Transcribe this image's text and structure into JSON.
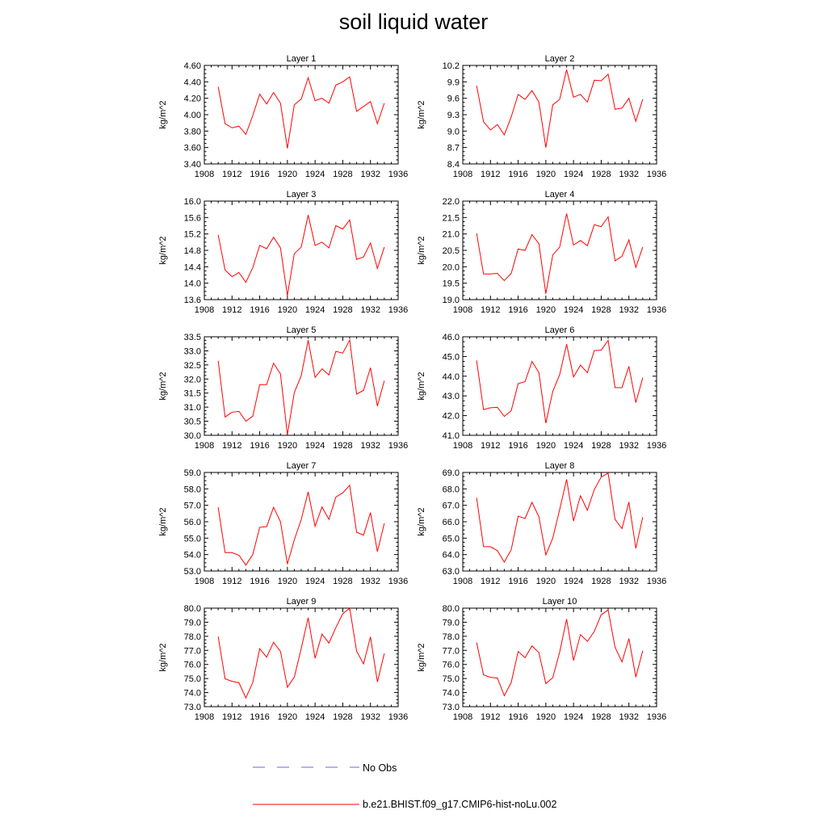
{
  "figure": {
    "title": "soil liquid water",
    "legend": [
      {
        "label": "No Obs",
        "color": "#6a6ad8",
        "style": "dashed"
      },
      {
        "label": "b.e21.BHIST.f09_g17.CMIP6-hist-noLu.002",
        "color": "#ff0000",
        "style": "solid"
      }
    ]
  },
  "chart_data": [
    {
      "type": "line",
      "title": "Layer 1",
      "xlabel": "",
      "ylabel": "kg/m^2",
      "xlim": [
        1908,
        1936
      ],
      "ylim": [
        3.4,
        4.6
      ],
      "xticks": [
        "1908",
        "1912",
        "1916",
        "1920",
        "1924",
        "1928",
        "1932",
        "1936"
      ],
      "yticks": [
        "3.40",
        "3.60",
        "3.80",
        "4.00",
        "4.20",
        "4.40",
        "4.60"
      ],
      "x": [
        1910,
        1911,
        1912,
        1913,
        1914,
        1915,
        1916,
        1917,
        1918,
        1919,
        1920,
        1921,
        1922,
        1923,
        1924,
        1925,
        1926,
        1927,
        1928,
        1929,
        1930,
        1931,
        1932,
        1933,
        1934
      ],
      "series": [
        {
          "name": "b.e21.BHIST.f09_g17.CMIP6-hist-noLu.002",
          "color": "#ff0000",
          "values": [
            4.34,
            3.89,
            3.84,
            3.86,
            3.76,
            3.99,
            4.25,
            4.13,
            4.27,
            4.14,
            3.59,
            4.12,
            4.19,
            4.45,
            4.17,
            4.2,
            4.14,
            4.36,
            4.4,
            4.46,
            4.04,
            4.1,
            4.16,
            3.89,
            4.14
          ]
        }
      ]
    },
    {
      "type": "line",
      "title": "Layer 2",
      "xlabel": "",
      "ylabel": "kg/m^2",
      "xlim": [
        1908,
        1936
      ],
      "ylim": [
        8.4,
        10.2
      ],
      "xticks": [
        "1908",
        "1912",
        "1916",
        "1920",
        "1924",
        "1928",
        "1932",
        "1936"
      ],
      "yticks": [
        "8.4",
        "8.7",
        "9.0",
        "9.3",
        "9.6",
        "9.9",
        "10.2"
      ],
      "x": [
        1910,
        1911,
        1912,
        1913,
        1914,
        1915,
        1916,
        1917,
        1918,
        1919,
        1920,
        1921,
        1922,
        1923,
        1924,
        1925,
        1926,
        1927,
        1928,
        1929,
        1930,
        1931,
        1932,
        1933,
        1934
      ],
      "series": [
        {
          "name": "b.e21.BHIST.f09_g17.CMIP6-hist-noLu.002",
          "color": "#ff0000",
          "values": [
            9.83,
            9.17,
            9.02,
            9.12,
            8.93,
            9.26,
            9.67,
            9.58,
            9.74,
            9.53,
            8.7,
            9.48,
            9.58,
            10.12,
            9.62,
            9.67,
            9.53,
            9.93,
            9.92,
            10.04,
            9.4,
            9.42,
            9.6,
            9.18,
            9.58
          ]
        }
      ]
    },
    {
      "type": "line",
      "title": "Layer 3",
      "xlabel": "",
      "ylabel": "kg/m^2",
      "xlim": [
        1908,
        1936
      ],
      "ylim": [
        13.6,
        16.0
      ],
      "xticks": [
        "1908",
        "1912",
        "1916",
        "1920",
        "1924",
        "1928",
        "1932",
        "1936"
      ],
      "yticks": [
        "13.6",
        "14.0",
        "14.4",
        "14.8",
        "15.2",
        "15.6",
        "16.0"
      ],
      "x": [
        1910,
        1911,
        1912,
        1913,
        1914,
        1915,
        1916,
        1917,
        1918,
        1919,
        1920,
        1921,
        1922,
        1923,
        1924,
        1925,
        1926,
        1927,
        1928,
        1929,
        1930,
        1931,
        1932,
        1933,
        1934
      ],
      "series": [
        {
          "name": "b.e21.BHIST.f09_g17.CMIP6-hist-noLu.002",
          "color": "#ff0000",
          "values": [
            15.18,
            14.32,
            14.16,
            14.26,
            14.02,
            14.38,
            14.92,
            14.84,
            15.12,
            14.86,
            13.7,
            14.72,
            14.88,
            15.66,
            14.92,
            15.0,
            14.86,
            15.4,
            15.32,
            15.54,
            14.58,
            14.64,
            14.98,
            14.36,
            14.88
          ]
        }
      ]
    },
    {
      "type": "line",
      "title": "Layer 4",
      "xlabel": "",
      "ylabel": "kg/m^2",
      "xlim": [
        1908,
        1936
      ],
      "ylim": [
        19.0,
        22.0
      ],
      "xticks": [
        "1908",
        "1912",
        "1916",
        "1920",
        "1924",
        "1928",
        "1932",
        "1936"
      ],
      "yticks": [
        "19.0",
        "19.5",
        "20.0",
        "20.5",
        "21.0",
        "21.5",
        "22.0"
      ],
      "x": [
        1910,
        1911,
        1912,
        1913,
        1914,
        1915,
        1916,
        1917,
        1918,
        1919,
        1920,
        1921,
        1922,
        1923,
        1924,
        1925,
        1926,
        1927,
        1928,
        1929,
        1930,
        1931,
        1932,
        1933,
        1934
      ],
      "series": [
        {
          "name": "b.e21.BHIST.f09_g17.CMIP6-hist-noLu.002",
          "color": "#ff0000",
          "values": [
            21.02,
            19.78,
            19.78,
            19.8,
            19.58,
            19.8,
            20.54,
            20.5,
            20.98,
            20.7,
            19.18,
            20.36,
            20.6,
            21.62,
            20.66,
            20.8,
            20.64,
            21.28,
            21.22,
            21.52,
            20.18,
            20.32,
            20.82,
            19.98,
            20.6
          ]
        }
      ]
    },
    {
      "type": "line",
      "title": "Layer 5",
      "xlabel": "",
      "ylabel": "kg/m^2",
      "xlim": [
        1908,
        1936
      ],
      "ylim": [
        30.0,
        33.5
      ],
      "xticks": [
        "1908",
        "1912",
        "1916",
        "1920",
        "1924",
        "1928",
        "1932",
        "1936"
      ],
      "yticks": [
        "30.0",
        "30.5",
        "31.0",
        "31.5",
        "32.0",
        "32.5",
        "33.0",
        "33.5"
      ],
      "x": [
        1910,
        1911,
        1912,
        1913,
        1914,
        1915,
        1916,
        1917,
        1918,
        1919,
        1920,
        1921,
        1922,
        1923,
        1924,
        1925,
        1926,
        1927,
        1928,
        1929,
        1930,
        1931,
        1932,
        1933,
        1934
      ],
      "series": [
        {
          "name": "b.e21.BHIST.f09_g17.CMIP6-hist-noLu.002",
          "color": "#ff0000",
          "values": [
            32.65,
            30.65,
            30.82,
            30.85,
            30.5,
            30.68,
            31.8,
            31.8,
            32.56,
            32.18,
            30.02,
            31.52,
            32.12,
            33.38,
            32.06,
            32.36,
            32.14,
            32.98,
            32.92,
            33.38,
            31.46,
            31.6,
            32.4,
            31.04,
            31.94
          ]
        }
      ]
    },
    {
      "type": "line",
      "title": "Layer 6",
      "xlabel": "",
      "ylabel": "kg/m^2",
      "xlim": [
        1908,
        1936
      ],
      "ylim": [
        41.0,
        46.0
      ],
      "xticks": [
        "1908",
        "1912",
        "1916",
        "1920",
        "1924",
        "1928",
        "1932",
        "1936"
      ],
      "yticks": [
        "41.0",
        "42.0",
        "43.0",
        "44.0",
        "45.0",
        "46.0"
      ],
      "x": [
        1910,
        1911,
        1912,
        1913,
        1914,
        1915,
        1916,
        1917,
        1918,
        1919,
        1920,
        1921,
        1922,
        1923,
        1924,
        1925,
        1926,
        1927,
        1928,
        1929,
        1930,
        1931,
        1932,
        1933,
        1934
      ],
      "series": [
        {
          "name": "b.e21.BHIST.f09_g17.CMIP6-hist-noLu.002",
          "color": "#ff0000",
          "values": [
            44.8,
            42.3,
            42.4,
            42.42,
            41.96,
            42.25,
            43.62,
            43.72,
            44.75,
            44.18,
            41.62,
            43.22,
            44.08,
            45.62,
            43.96,
            44.56,
            44.18,
            45.3,
            45.32,
            45.82,
            43.42,
            43.42,
            44.5,
            42.66,
            43.92
          ]
        }
      ]
    },
    {
      "type": "line",
      "title": "Layer 7",
      "xlabel": "",
      "ylabel": "kg/m^2",
      "xlim": [
        1908,
        1936
      ],
      "ylim": [
        53.0,
        59.0
      ],
      "xticks": [
        "1908",
        "1912",
        "1916",
        "1920",
        "1924",
        "1928",
        "1932",
        "1936"
      ],
      "yticks": [
        "53.0",
        "54.0",
        "55.0",
        "56.0",
        "57.0",
        "58.0",
        "59.0"
      ],
      "x": [
        1910,
        1911,
        1912,
        1913,
        1914,
        1915,
        1916,
        1917,
        1918,
        1919,
        1920,
        1921,
        1922,
        1923,
        1924,
        1925,
        1926,
        1927,
        1928,
        1929,
        1930,
        1931,
        1932,
        1933,
        1934
      ],
      "series": [
        {
          "name": "b.e21.BHIST.f09_g17.CMIP6-hist-noLu.002",
          "color": "#ff0000",
          "values": [
            56.88,
            54.12,
            54.12,
            53.96,
            53.36,
            54.0,
            55.66,
            55.7,
            56.88,
            56.0,
            53.42,
            54.9,
            56.14,
            57.82,
            55.72,
            56.9,
            56.14,
            57.5,
            57.76,
            58.22,
            55.36,
            55.18,
            56.56,
            54.18,
            55.9
          ]
        }
      ]
    },
    {
      "type": "line",
      "title": "Layer 8",
      "xlabel": "",
      "ylabel": "kg/m^2",
      "xlim": [
        1908,
        1936
      ],
      "ylim": [
        63.0,
        69.0
      ],
      "xticks": [
        "1908",
        "1912",
        "1916",
        "1920",
        "1924",
        "1928",
        "1932",
        "1936"
      ],
      "yticks": [
        "63.0",
        "64.0",
        "65.0",
        "66.0",
        "67.0",
        "68.0",
        "69.0"
      ],
      "x": [
        1910,
        1911,
        1912,
        1913,
        1914,
        1915,
        1916,
        1917,
        1918,
        1919,
        1920,
        1921,
        1922,
        1923,
        1924,
        1925,
        1926,
        1927,
        1928,
        1929,
        1930,
        1931,
        1932,
        1933,
        1934
      ],
      "series": [
        {
          "name": "b.e21.BHIST.f09_g17.CMIP6-hist-noLu.002",
          "color": "#ff0000",
          "values": [
            67.46,
            64.48,
            64.48,
            64.24,
            63.54,
            64.3,
            66.34,
            66.2,
            67.18,
            66.3,
            63.98,
            65.0,
            66.74,
            68.58,
            66.04,
            67.58,
            66.7,
            67.96,
            68.72,
            68.96,
            66.14,
            65.58,
            67.2,
            64.38,
            66.28
          ]
        }
      ]
    },
    {
      "type": "line",
      "title": "Layer 9",
      "xlabel": "",
      "ylabel": "kg/m^2",
      "xlim": [
        1908,
        1936
      ],
      "ylim": [
        73.0,
        80.0
      ],
      "xticks": [
        "1908",
        "1912",
        "1916",
        "1920",
        "1924",
        "1928",
        "1932",
        "1936"
      ],
      "yticks": [
        "73.0",
        "74.0",
        "75.0",
        "76.0",
        "77.0",
        "78.0",
        "79.0",
        "80.0"
      ],
      "x": [
        1910,
        1911,
        1912,
        1913,
        1914,
        1915,
        1916,
        1917,
        1918,
        1919,
        1920,
        1921,
        1922,
        1923,
        1924,
        1925,
        1926,
        1927,
        1928,
        1929,
        1930,
        1931,
        1932,
        1933,
        1934
      ],
      "series": [
        {
          "name": "b.e21.BHIST.f09_g17.CMIP6-hist-noLu.002",
          "color": "#ff0000",
          "values": [
            77.98,
            74.98,
            74.8,
            74.7,
            73.62,
            74.72,
            77.12,
            76.52,
            77.58,
            76.92,
            74.38,
            75.1,
            77.14,
            79.32,
            76.44,
            78.16,
            77.52,
            78.62,
            79.6,
            80.0,
            76.94,
            76.04,
            77.96,
            74.76,
            76.78
          ]
        }
      ]
    },
    {
      "type": "line",
      "title": "Layer 10",
      "xlabel": "",
      "ylabel": "kg/m^2",
      "xlim": [
        1908,
        1936
      ],
      "ylim": [
        73.0,
        80.0
      ],
      "xticks": [
        "1908",
        "1912",
        "1916",
        "1920",
        "1924",
        "1928",
        "1932",
        "1936"
      ],
      "yticks": [
        "73.0",
        "74.0",
        "75.0",
        "76.0",
        "77.0",
        "78.0",
        "79.0",
        "80.0"
      ],
      "x": [
        1910,
        1911,
        1912,
        1913,
        1914,
        1915,
        1916,
        1917,
        1918,
        1919,
        1920,
        1921,
        1922,
        1923,
        1924,
        1925,
        1926,
        1927,
        1928,
        1929,
        1930,
        1931,
        1932,
        1933,
        1934
      ],
      "series": [
        {
          "name": "b.e21.BHIST.f09_g17.CMIP6-hist-noLu.002",
          "color": "#ff0000",
          "values": [
            77.56,
            75.26,
            75.08,
            75.04,
            73.78,
            74.72,
            76.92,
            76.48,
            77.32,
            76.84,
            74.64,
            75.06,
            76.88,
            79.22,
            76.28,
            78.12,
            77.64,
            78.34,
            79.54,
            79.86,
            77.22,
            76.18,
            77.84,
            75.1,
            76.98
          ]
        }
      ]
    }
  ]
}
